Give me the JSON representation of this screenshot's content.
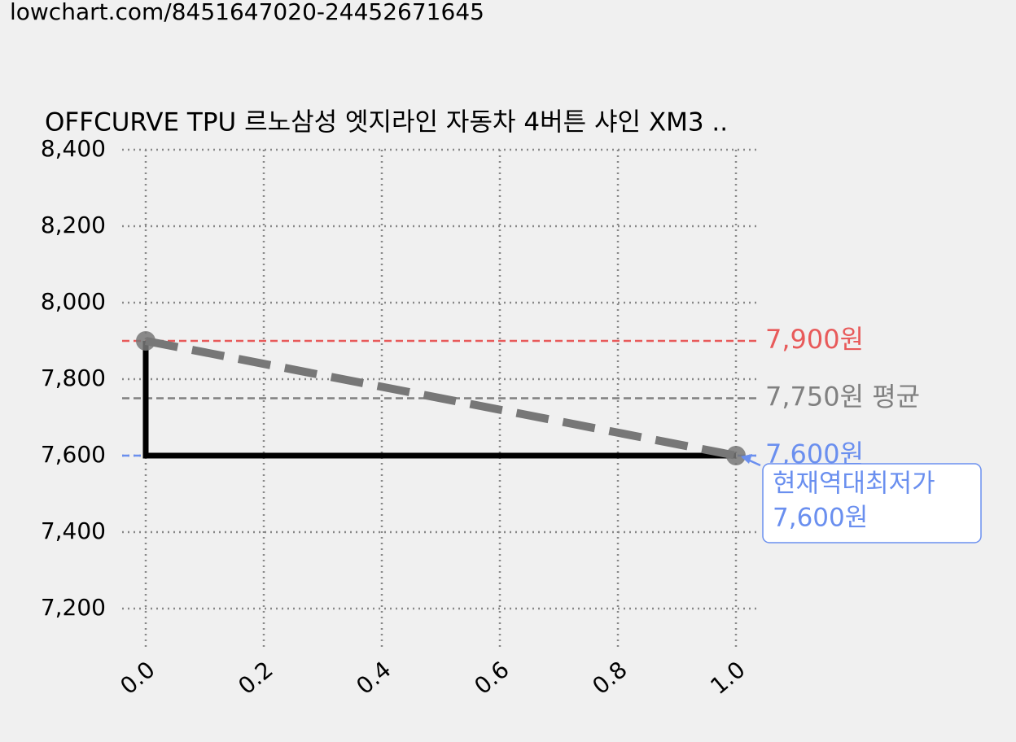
{
  "url": "lowchart.com/8451647020-24452671645",
  "chart_data": {
    "type": "line",
    "title": "OFFCURVE TPU 르노삼성 엣지라인 자동차 4버튼 샤인 XM3 ..",
    "xlim": [
      -0.04,
      1.04
    ],
    "ylim": [
      7100,
      8400
    ],
    "xticks": [
      {
        "value": 0,
        "label": "0.0"
      },
      {
        "value": 0.2,
        "label": "0.2"
      },
      {
        "value": 0.4,
        "label": "0.4"
      },
      {
        "value": 0.6,
        "label": "0.6"
      },
      {
        "value": 0.8,
        "label": "0.8"
      },
      {
        "value": 1,
        "label": "1.0"
      }
    ],
    "yticks": [
      {
        "value": 7200,
        "label": "7,200"
      },
      {
        "value": 7400,
        "label": "7,400"
      },
      {
        "value": 7600,
        "label": "7,600"
      },
      {
        "value": 7800,
        "label": "7,800"
      },
      {
        "value": 8000,
        "label": "8,000"
      },
      {
        "value": 8200,
        "label": "8,200"
      },
      {
        "value": 8400,
        "label": "8,400"
      }
    ],
    "grid": true,
    "series": [
      {
        "x": [
          0,
          0,
          1
        ],
        "values": [
          7900,
          7600,
          7600
        ],
        "color": "#000000",
        "style": "solid"
      },
      {
        "x": [
          0,
          1
        ],
        "values": [
          7900,
          7600
        ],
        "color": "#777777",
        "style": "dashed",
        "markers": true
      }
    ],
    "hlines": [
      {
        "value": 7900,
        "label": "7,900원",
        "color": "#e85a5a"
      },
      {
        "value": 7750,
        "label": "7,750원 평균",
        "color": "#808080"
      },
      {
        "value": 7600,
        "label": "7,600원",
        "color": "#6a8fef"
      }
    ],
    "annotation": {
      "x": 1,
      "y": 7600,
      "lines": [
        "현재역대최저가",
        "7,600원"
      ],
      "color": "#6a8fef"
    }
  }
}
